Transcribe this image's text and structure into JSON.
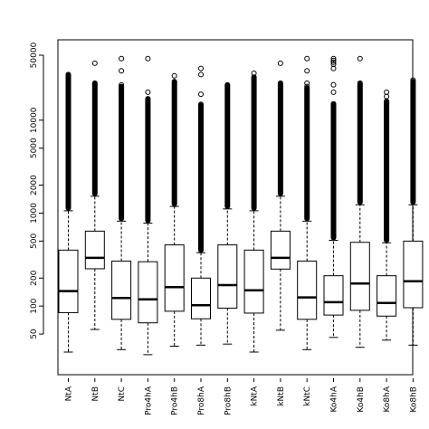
{
  "chart_data": {
    "type": "box",
    "scale": "log",
    "ylim": [
      25,
      70000
    ],
    "yticks": [
      {
        "value": 50,
        "label": "50"
      },
      {
        "value": 100,
        "label": "100"
      },
      {
        "value": 200,
        "label": "200"
      },
      {
        "value": 500,
        "label": "500"
      },
      {
        "value": 1000,
        "label": "1000"
      },
      {
        "value": 2000,
        "label": "2000"
      },
      {
        "value": 5000,
        "label": "5000"
      },
      {
        "value": 10000,
        "label": "10000"
      },
      {
        "value": 50000,
        "label": "50000"
      }
    ],
    "categories": [
      "NtA",
      "NtB",
      "NtC",
      "Pro4hA",
      "Pro4hB",
      "Pro8hA",
      "Pro8hB",
      "kNtA",
      "kNtB",
      "kNtC",
      "Ko4hA",
      "Ko4hB",
      "Ko8hA",
      "Ko8hB"
    ],
    "boxes": [
      {
        "name": "NtA",
        "whisker_low": 32,
        "q1": 85,
        "median": 145,
        "q3": 400,
        "whisker_high": 1060,
        "outlier_top": 31000,
        "outliers": []
      },
      {
        "name": "NtB",
        "whisker_low": 56,
        "q1": 252,
        "median": 330,
        "q3": 640,
        "whisker_high": 1520,
        "outlier_top": 25000,
        "outliers": [
          41000
        ]
      },
      {
        "name": "NtC",
        "whisker_low": 34,
        "q1": 72,
        "median": 122,
        "q3": 305,
        "whisker_high": 820,
        "outlier_top": 23000,
        "outliers": [
          46000,
          34000,
          24000,
          22000
        ]
      },
      {
        "name": "Pro4hA",
        "whisker_low": 30,
        "q1": 66,
        "median": 118,
        "q3": 300,
        "whisker_high": 780,
        "outlier_top": 17000,
        "outliers": [
          46000,
          20000
        ]
      },
      {
        "name": "Pro4hB",
        "whisker_low": 37,
        "q1": 88,
        "median": 160,
        "q3": 455,
        "whisker_high": 1180,
        "outlier_top": 26000,
        "outliers": [
          30000
        ]
      },
      {
        "name": "Pro8hA",
        "whisker_low": 38,
        "q1": 73,
        "median": 102,
        "q3": 200,
        "whisker_high": 375,
        "outlier_top": 14500,
        "outliers": [
          36000,
          31000,
          19000,
          14800
        ]
      },
      {
        "name": "Pro8hB",
        "whisker_low": 39,
        "q1": 95,
        "median": 168,
        "q3": 455,
        "whisker_high": 1110,
        "outlier_top": 24000,
        "outliers": []
      },
      {
        "name": "kNtA",
        "whisker_low": 32,
        "q1": 84,
        "median": 148,
        "q3": 400,
        "whisker_high": 1060,
        "outlier_top": 29000,
        "outliers": [
          32000
        ]
      },
      {
        "name": "kNtB",
        "whisker_low": 55,
        "q1": 250,
        "median": 330,
        "q3": 640,
        "whisker_high": 1520,
        "outlier_top": 25000,
        "outliers": [
          41000
        ]
      },
      {
        "name": "kNtC",
        "whisker_low": 34,
        "q1": 72,
        "median": 124,
        "q3": 305,
        "whisker_high": 820,
        "outlier_top": 22000,
        "outliers": [
          46000,
          34000,
          25000,
          23000
        ]
      },
      {
        "name": "Ko4hA",
        "whisker_low": 46,
        "q1": 80,
        "median": 110,
        "q3": 212,
        "whisker_high": 510,
        "outlier_top": 15000,
        "outliers": [
          46000,
          44000,
          42000,
          40000,
          36000,
          24000,
          20000
        ]
      },
      {
        "name": "Ko4hB",
        "whisker_low": 36,
        "q1": 90,
        "median": 175,
        "q3": 485,
        "whisker_high": 1230,
        "outlier_top": 25000,
        "outliers": [
          46000
        ]
      },
      {
        "name": "Ko8hA",
        "whisker_low": 43,
        "q1": 78,
        "median": 108,
        "q3": 212,
        "whisker_high": 480,
        "outlier_top": 16000,
        "outliers": [
          20000,
          18000
        ]
      },
      {
        "name": "Ko8hB",
        "whisker_low": 38,
        "q1": 96,
        "median": 185,
        "q3": 500,
        "whisker_high": 1230,
        "outlier_top": 26000,
        "outliers": [
          27000
        ]
      }
    ],
    "title": "",
    "xlabel": "",
    "ylabel": "",
    "grid": false
  }
}
